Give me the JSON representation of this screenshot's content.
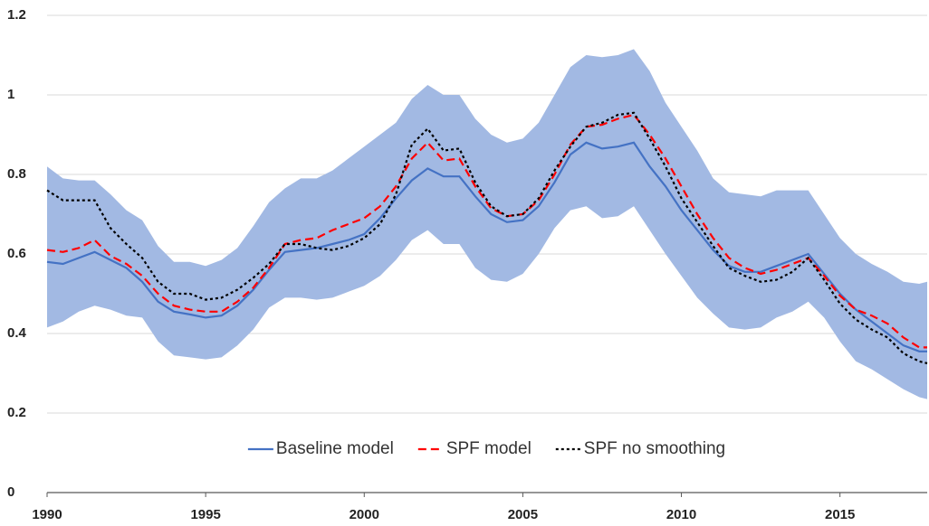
{
  "chart_data": {
    "type": "line",
    "x": [
      1990,
      1990.5,
      1991,
      1991.5,
      1992,
      1992.5,
      1993,
      1993.5,
      1994,
      1994.5,
      1995,
      1995.5,
      1996,
      1996.5,
      1997,
      1997.5,
      1998,
      1998.5,
      1999,
      1999.5,
      2000,
      2000.5,
      2001,
      2001.5,
      2002,
      2002.5,
      2003,
      2003.5,
      2004,
      2004.5,
      2005,
      2005.5,
      2006,
      2006.5,
      2007,
      2007.5,
      2008,
      2008.5,
      2009,
      2009.5,
      2010,
      2010.5,
      2011,
      2011.5,
      2012,
      2012.5,
      2013,
      2013.5,
      2014,
      2014.5,
      2015,
      2015.5,
      2016,
      2016.5,
      2017,
      2017.5,
      2017.75
    ],
    "band": {
      "color": "#a2b9e3",
      "upper": [
        0.82,
        0.79,
        0.785,
        0.785,
        0.75,
        0.71,
        0.685,
        0.62,
        0.58,
        0.58,
        0.57,
        0.585,
        0.615,
        0.67,
        0.73,
        0.765,
        0.79,
        0.79,
        0.81,
        0.84,
        0.87,
        0.9,
        0.93,
        0.99,
        1.025,
        1.0,
        1.0,
        0.94,
        0.9,
        0.88,
        0.89,
        0.93,
        1.0,
        1.07,
        1.1,
        1.095,
        1.1,
        1.115,
        1.06,
        0.98,
        0.92,
        0.86,
        0.79,
        0.755,
        0.75,
        0.745,
        0.76,
        0.76,
        0.76,
        0.7,
        0.64,
        0.6,
        0.575,
        0.555,
        0.53,
        0.525,
        0.53
      ],
      "lower": [
        0.415,
        0.43,
        0.455,
        0.47,
        0.46,
        0.445,
        0.44,
        0.38,
        0.345,
        0.34,
        0.335,
        0.34,
        0.37,
        0.41,
        0.465,
        0.49,
        0.49,
        0.485,
        0.49,
        0.505,
        0.52,
        0.545,
        0.585,
        0.635,
        0.66,
        0.625,
        0.625,
        0.565,
        0.535,
        0.53,
        0.55,
        0.6,
        0.665,
        0.71,
        0.72,
        0.69,
        0.695,
        0.72,
        0.66,
        0.6,
        0.545,
        0.49,
        0.45,
        0.415,
        0.41,
        0.415,
        0.44,
        0.455,
        0.48,
        0.44,
        0.38,
        0.33,
        0.31,
        0.285,
        0.26,
        0.24,
        0.235
      ]
    },
    "series": [
      {
        "name": "Baseline model",
        "color": "#4472c4",
        "style": "solid",
        "values": [
          0.58,
          0.575,
          0.59,
          0.605,
          0.585,
          0.565,
          0.53,
          0.48,
          0.455,
          0.448,
          0.44,
          0.445,
          0.47,
          0.51,
          0.56,
          0.605,
          0.61,
          0.615,
          0.625,
          0.635,
          0.65,
          0.69,
          0.74,
          0.785,
          0.815,
          0.795,
          0.795,
          0.745,
          0.7,
          0.68,
          0.685,
          0.72,
          0.78,
          0.85,
          0.88,
          0.865,
          0.87,
          0.88,
          0.82,
          0.77,
          0.71,
          0.66,
          0.61,
          0.57,
          0.555,
          0.555,
          0.57,
          0.585,
          0.6,
          0.55,
          0.5,
          0.46,
          0.43,
          0.4,
          0.37,
          0.355,
          0.355
        ]
      },
      {
        "name": "SPF model",
        "color": "#ff0000",
        "style": "dashed",
        "values": [
          0.61,
          0.605,
          0.615,
          0.635,
          0.595,
          0.575,
          0.545,
          0.5,
          0.47,
          0.46,
          0.455,
          0.455,
          0.48,
          0.515,
          0.565,
          0.625,
          0.635,
          0.64,
          0.66,
          0.675,
          0.69,
          0.72,
          0.77,
          0.84,
          0.88,
          0.835,
          0.84,
          0.77,
          0.715,
          0.695,
          0.7,
          0.735,
          0.8,
          0.875,
          0.92,
          0.925,
          0.94,
          0.95,
          0.9,
          0.84,
          0.77,
          0.7,
          0.64,
          0.59,
          0.565,
          0.55,
          0.56,
          0.575,
          0.59,
          0.545,
          0.495,
          0.46,
          0.445,
          0.425,
          0.39,
          0.365,
          0.365
        ]
      },
      {
        "name": "SPF no smoothing",
        "color": "#000000",
        "style": "dotted",
        "values": [
          0.76,
          0.735,
          0.735,
          0.735,
          0.665,
          0.625,
          0.59,
          0.53,
          0.5,
          0.5,
          0.485,
          0.49,
          0.51,
          0.54,
          0.575,
          0.625,
          0.625,
          0.615,
          0.61,
          0.62,
          0.64,
          0.675,
          0.75,
          0.875,
          0.915,
          0.86,
          0.865,
          0.78,
          0.72,
          0.695,
          0.7,
          0.74,
          0.81,
          0.87,
          0.92,
          0.93,
          0.95,
          0.955,
          0.89,
          0.82,
          0.74,
          0.68,
          0.62,
          0.565,
          0.545,
          0.53,
          0.535,
          0.555,
          0.59,
          0.535,
          0.475,
          0.435,
          0.41,
          0.39,
          0.35,
          0.33,
          0.325
        ]
      }
    ],
    "xlim": [
      1990,
      2017.75
    ],
    "xticks": [
      1990,
      1995,
      2000,
      2005,
      2010,
      2015
    ],
    "ylim": [
      0,
      1.2
    ],
    "yticks": [
      0,
      0.2,
      0.4,
      0.6,
      0.8,
      1,
      1.2
    ],
    "grid": true,
    "legend": "lower center"
  }
}
